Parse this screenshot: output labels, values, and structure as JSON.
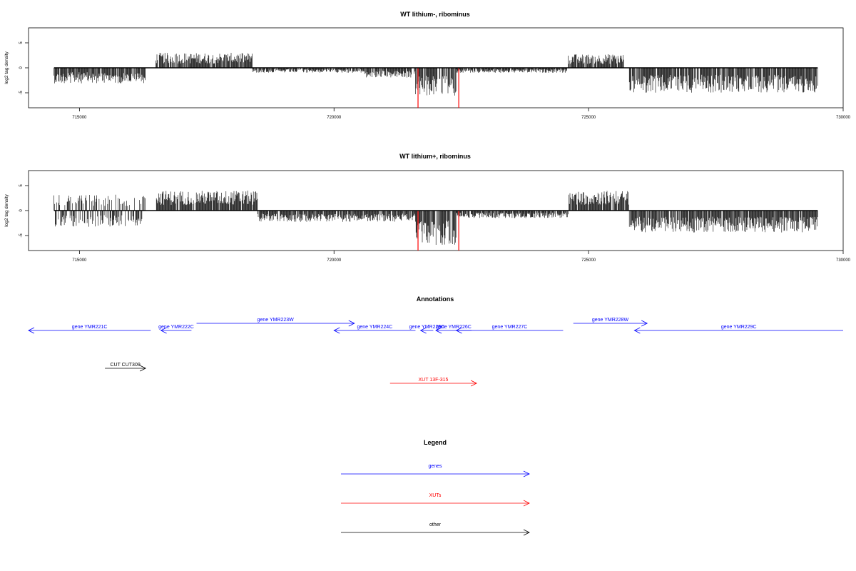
{
  "chart_data": [
    {
      "type": "bar",
      "title": "WT lithium-, ribominus",
      "ylabel": "log2 tag density",
      "xlim": [
        714000,
        730000
      ],
      "ylim": [
        -8,
        8
      ],
      "x_ticks": [
        "715000",
        "720000",
        "725000",
        "730000"
      ],
      "y_ticks": [
        "5",
        "0",
        "-5"
      ],
      "segments": [
        {
          "x0": 714500,
          "x1": 716300,
          "direction": "minus",
          "amp": 2.5
        },
        {
          "x0": 716500,
          "x1": 718400,
          "direction": "plus",
          "amp": 2.4
        },
        {
          "x0": 718400,
          "x1": 720600,
          "direction": "minus",
          "amp": 0.8
        },
        {
          "x0": 720600,
          "x1": 721600,
          "direction": "minus",
          "amp": 1.6
        },
        {
          "x0": 721600,
          "x1": 722400,
          "direction": "minus",
          "amp": 4.5
        },
        {
          "x0": 722400,
          "x1": 724600,
          "direction": "minus",
          "amp": 0.8
        },
        {
          "x0": 724600,
          "x1": 725700,
          "direction": "plus",
          "amp": 2.2
        },
        {
          "x0": 725800,
          "x1": 729500,
          "direction": "minus",
          "amp": 4.0
        }
      ],
      "highlight": {
        "x0": 721650,
        "x1": 722450,
        "ymin": -8,
        "color": "#ff0000"
      }
    },
    {
      "type": "bar",
      "title": "WT lithium+, ribominus",
      "ylabel": "log2 tag density",
      "xlim": [
        714000,
        730000
      ],
      "ylim": [
        -8,
        8
      ],
      "x_ticks": [
        "715000",
        "720000",
        "725000",
        "730000"
      ],
      "y_ticks": [
        "5",
        "0",
        "-5"
      ],
      "segments": [
        {
          "x0": 714500,
          "x1": 716300,
          "direction": "both",
          "amp": 2.6
        },
        {
          "x0": 716500,
          "x1": 718500,
          "direction": "plus",
          "amp": 3.2
        },
        {
          "x0": 718500,
          "x1": 721600,
          "direction": "minus",
          "amp": 1.8
        },
        {
          "x0": 721600,
          "x1": 722400,
          "direction": "minus",
          "amp": 5.5
        },
        {
          "x0": 722400,
          "x1": 724600,
          "direction": "minus",
          "amp": 1.2
        },
        {
          "x0": 724600,
          "x1": 725800,
          "direction": "plus",
          "amp": 3.2
        },
        {
          "x0": 725800,
          "x1": 729500,
          "direction": "minus",
          "amp": 3.5
        }
      ],
      "highlight": {
        "x0": 721650,
        "x1": 722450,
        "ymin": -8,
        "color": "#ff0000"
      }
    }
  ],
  "annotations": {
    "title": "Annotations",
    "features": [
      {
        "label": "gene YMR221C",
        "x0": 714000,
        "x1": 716400,
        "strand": "-",
        "row": 1,
        "category": "genes"
      },
      {
        "label": "gene YMR222C",
        "x0": 716600,
        "x1": 717200,
        "strand": "-",
        "row": 1,
        "category": "genes"
      },
      {
        "label": "gene YMR223W",
        "x0": 717300,
        "x1": 720400,
        "strand": "+",
        "row": 0,
        "category": "genes"
      },
      {
        "label": "gene YMR224C",
        "x0": 720000,
        "x1": 721600,
        "strand": "-",
        "row": 1,
        "category": "genes"
      },
      {
        "label": "gene YMR225C",
        "x0": 721700,
        "x1": 721950,
        "strand": "-",
        "row": 1,
        "category": "genes"
      },
      {
        "label": "gene YMR226C",
        "x0": 722000,
        "x1": 722700,
        "strand": "-",
        "row": 1,
        "category": "genes"
      },
      {
        "label": "gene YMR227C",
        "x0": 722400,
        "x1": 724500,
        "strand": "-",
        "row": 1,
        "category": "genes"
      },
      {
        "label": "gene YMR228W",
        "x0": 724700,
        "x1": 726150,
        "strand": "+",
        "row": 0,
        "category": "genes"
      },
      {
        "label": "gene YMR229C",
        "x0": 725900,
        "x1": 730000,
        "strand": "-",
        "row": 1,
        "category": "genes"
      },
      {
        "label": "CUT CUT309",
        "x0": 715500,
        "x1": 716300,
        "strand": "+",
        "row": 2,
        "category": "other"
      },
      {
        "label": "XUT 13F-315",
        "x0": 721100,
        "x1": 722800,
        "strand": "+",
        "row": 3,
        "category": "XUTs"
      }
    ]
  },
  "legend": {
    "title": "Legend",
    "items": [
      {
        "label": "genes",
        "color": "#0000ff"
      },
      {
        "label": "XUTs",
        "color": "#ff0000"
      },
      {
        "label": "other",
        "color": "#000000"
      }
    ]
  },
  "colors": {
    "genes": "#0000ff",
    "XUTs": "#ff0000",
    "other": "#000000",
    "bars": "#000000"
  }
}
